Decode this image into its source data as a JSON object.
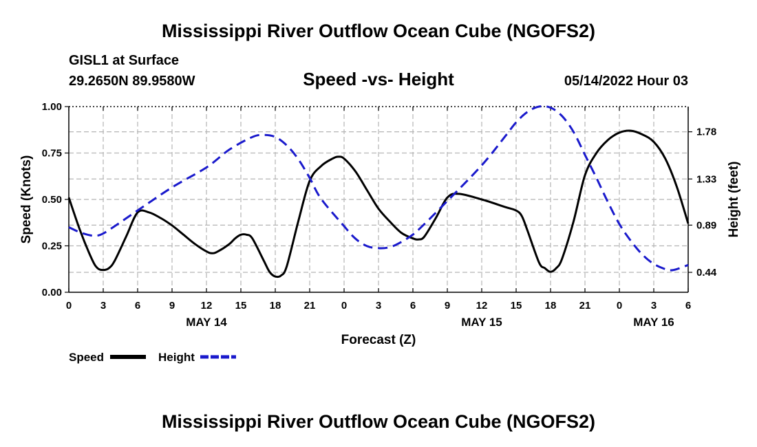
{
  "header": {
    "title": "Mississippi River Outflow Ocean Cube (NGOFS2)",
    "station": "GISL1 at Surface",
    "coords": "29.2650N  89.9580W",
    "subtitle": "Speed -vs- Height",
    "datetime": "05/14/2022 Hour 03"
  },
  "footer": {
    "title": "Mississippi River Outflow Ocean Cube (NGOFS2)"
  },
  "chart_data": {
    "type": "line",
    "title": "Speed -vs- Height",
    "xlabel": "Forecast (Z)",
    "ylabel": "Speed (Knots)",
    "y2label": "Height (feet)",
    "xlim": [
      0,
      54
    ],
    "ylim": [
      0,
      1.0
    ],
    "y2lim": [
      0.25,
      2.02
    ],
    "grid": true,
    "x_ticks": [
      0,
      3,
      6,
      9,
      12,
      15,
      18,
      21,
      24,
      27,
      30,
      33,
      36,
      39,
      42,
      45,
      48,
      51,
      54
    ],
    "x_tick_labels": [
      "0",
      "3",
      "6",
      "9",
      "12",
      "15",
      "18",
      "21",
      "0",
      "3",
      "6",
      "9",
      "12",
      "15",
      "18",
      "21",
      "0",
      "3",
      "6"
    ],
    "date_labels": [
      {
        "x": 12,
        "label": "MAY 14"
      },
      {
        "x": 36,
        "label": "MAY 15"
      },
      {
        "x": 51,
        "label": "MAY 16"
      }
    ],
    "y_ticks": [
      0.0,
      0.25,
      0.5,
      0.75,
      1.0
    ],
    "y_tick_labels": [
      "0.00",
      "0.25",
      "0.50",
      "0.75",
      "1.00"
    ],
    "y2_ticks": [
      0.44,
      0.89,
      1.33,
      1.78
    ],
    "y2_tick_labels": [
      "0.44",
      "0.89",
      "1.33",
      "1.78"
    ],
    "legend": [
      {
        "name": "Speed",
        "color": "#000000",
        "style": "solid"
      },
      {
        "name": "Height",
        "color": "#1a1acc",
        "style": "dashed"
      }
    ],
    "series": [
      {
        "name": "Speed",
        "axis": "left",
        "color": "#000000",
        "x": [
          0,
          1,
          2,
          2.5,
          3,
          3.5,
          4,
          5,
          6,
          7,
          8,
          9,
          10,
          11,
          12,
          12.5,
          13,
          14,
          14.5,
          15,
          15.5,
          16,
          17,
          17.5,
          18,
          18.5,
          19,
          20,
          21,
          22,
          23,
          23.5,
          24,
          25,
          26,
          27,
          28,
          29,
          30,
          30.5,
          31,
          32,
          33,
          34,
          36,
          38,
          39,
          39.5,
          40,
          41,
          41.5,
          42,
          42.5,
          43,
          44,
          45,
          46,
          47,
          48,
          49,
          50,
          51,
          52,
          53,
          54
        ],
        "values": [
          0.51,
          0.33,
          0.18,
          0.13,
          0.12,
          0.13,
          0.17,
          0.3,
          0.43,
          0.43,
          0.4,
          0.36,
          0.31,
          0.26,
          0.22,
          0.21,
          0.22,
          0.26,
          0.29,
          0.31,
          0.31,
          0.29,
          0.17,
          0.11,
          0.085,
          0.09,
          0.14,
          0.38,
          0.6,
          0.68,
          0.72,
          0.73,
          0.72,
          0.65,
          0.55,
          0.45,
          0.38,
          0.32,
          0.29,
          0.285,
          0.3,
          0.4,
          0.51,
          0.53,
          0.5,
          0.46,
          0.44,
          0.41,
          0.33,
          0.16,
          0.13,
          0.11,
          0.13,
          0.18,
          0.38,
          0.63,
          0.75,
          0.82,
          0.86,
          0.87,
          0.85,
          0.81,
          0.72,
          0.57,
          0.37
        ]
      },
      {
        "name": "Height",
        "axis": "right",
        "color": "#1a1acc",
        "x": [
          0,
          1,
          2,
          2.5,
          3,
          4,
          6,
          9,
          12,
          14,
          16,
          17,
          18,
          19,
          20,
          21,
          22,
          24,
          25,
          26,
          27,
          28,
          29,
          30,
          31,
          33,
          36,
          38,
          39,
          40,
          41,
          42,
          43,
          44,
          45,
          46,
          47,
          48,
          49,
          50,
          51,
          52,
          52.5,
          53,
          54
        ],
        "values": [
          0.87,
          0.82,
          0.79,
          0.79,
          0.81,
          0.88,
          1.03,
          1.25,
          1.44,
          1.61,
          1.73,
          1.75,
          1.73,
          1.65,
          1.52,
          1.34,
          1.14,
          0.88,
          0.76,
          0.69,
          0.67,
          0.68,
          0.73,
          0.8,
          0.9,
          1.12,
          1.46,
          1.73,
          1.87,
          1.97,
          2.02,
          2.01,
          1.93,
          1.78,
          1.56,
          1.34,
          1.11,
          0.9,
          0.74,
          0.61,
          0.52,
          0.47,
          0.46,
          0.47,
          0.51
        ]
      }
    ]
  }
}
